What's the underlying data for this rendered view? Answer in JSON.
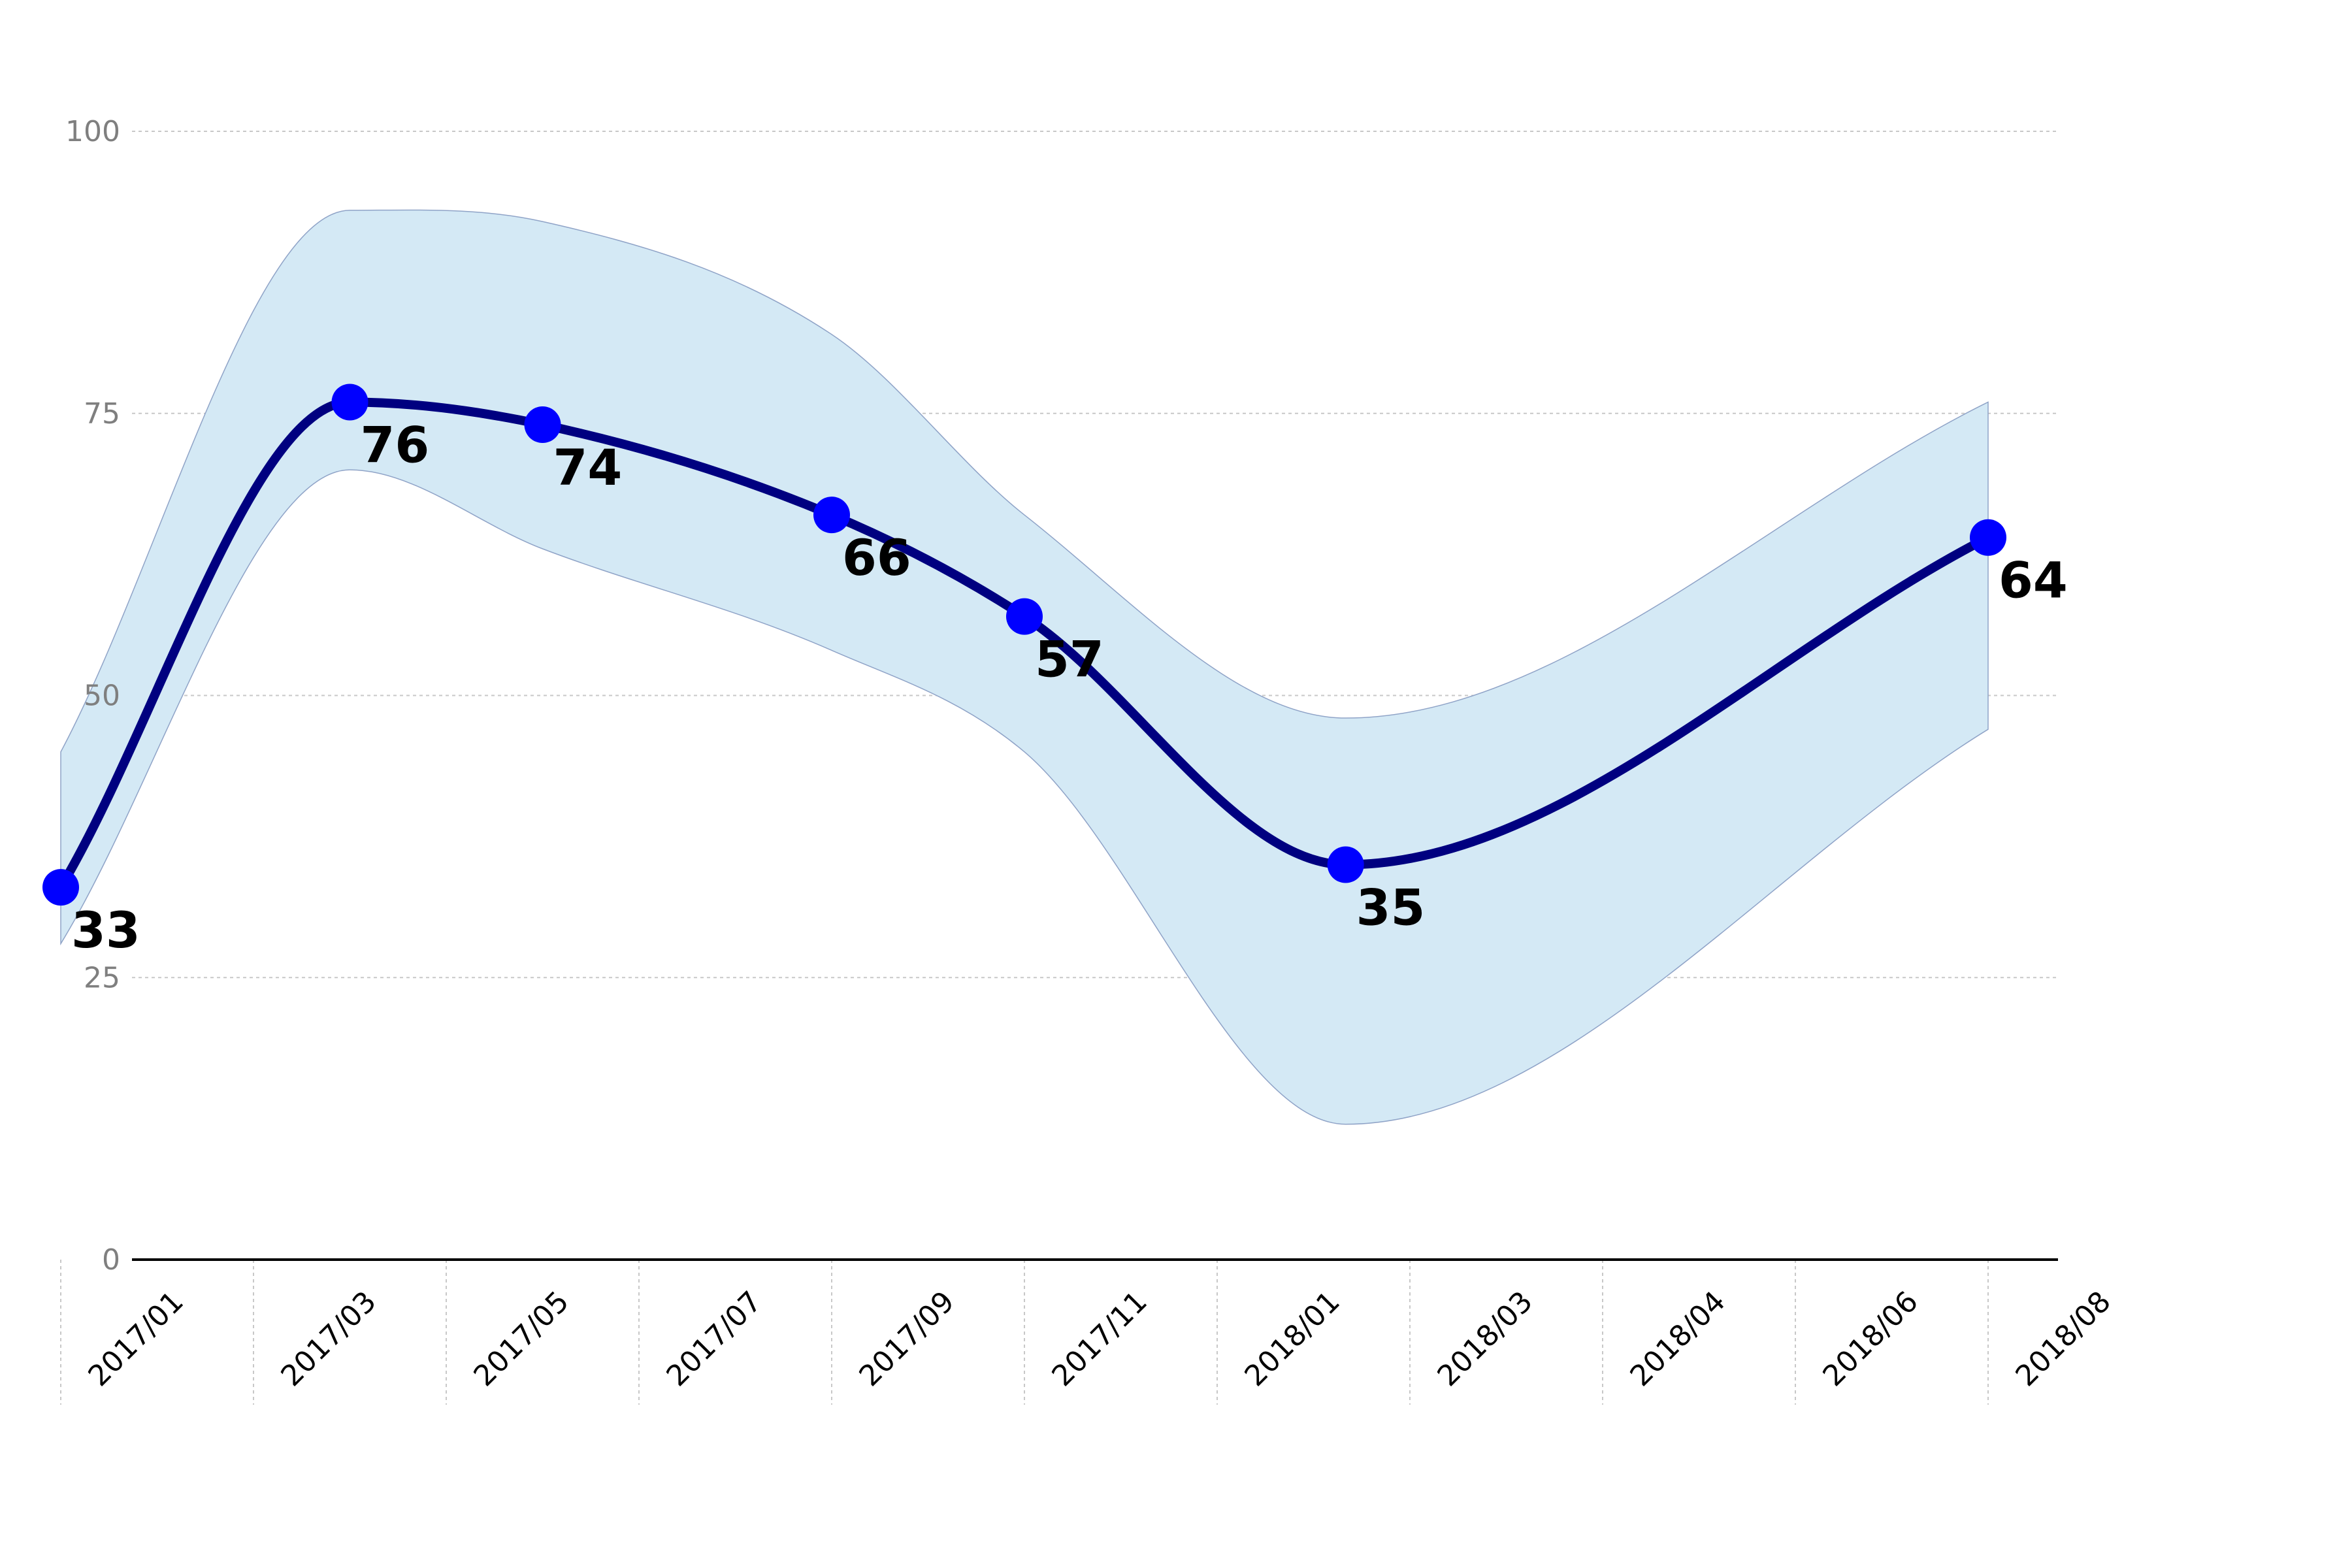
{
  "chart_data": {
    "type": "line",
    "title": "",
    "xlabel": "",
    "ylabel": "",
    "ylim": [
      0,
      100
    ],
    "yticks": [
      0,
      25,
      50,
      75,
      100
    ],
    "xticks": [
      "2017/01",
      "2017/03",
      "2017/05",
      "2017/07",
      "2017/09",
      "2017/11",
      "2018/01",
      "2018/03",
      "2018/04",
      "2018/06",
      "2018/08"
    ],
    "series": [
      {
        "x": [
          "2017/01",
          "2017/04",
          "2017/06",
          "2017/09",
          "2017/11",
          "2018/02",
          "2018/07"
        ],
        "values": [
          33,
          76,
          74,
          66,
          57,
          35,
          64
        ],
        "band_upper": [
          45,
          93,
          92,
          82,
          66,
          48,
          76
        ],
        "band_lower": [
          28,
          70,
          63,
          54,
          45,
          12,
          47
        ],
        "line_color": "#000080",
        "marker_color": "#0000ff",
        "band_color": "#d4e9f5"
      }
    ],
    "grid": true
  }
}
